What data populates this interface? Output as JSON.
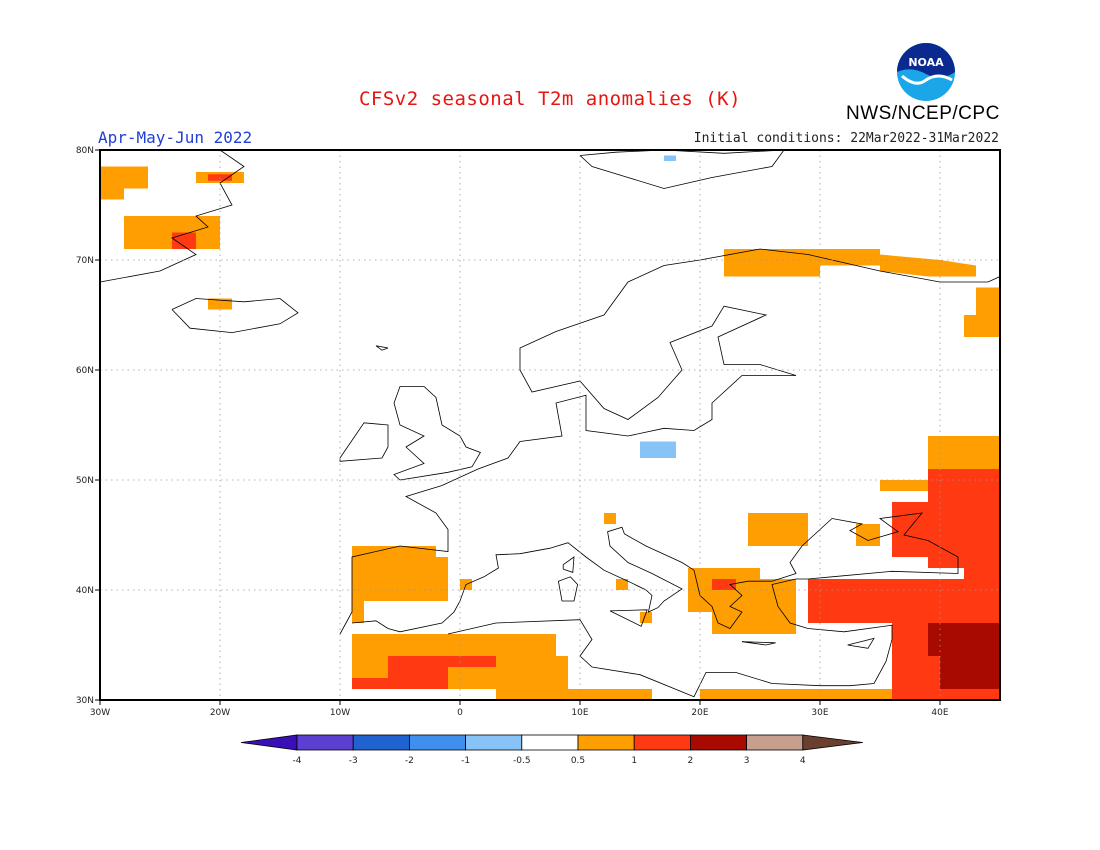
{
  "title": "CFSv2 seasonal T2m anomalies (K)",
  "period": "Apr-May-Jun 2022",
  "initial_conditions": "Initial conditions: 22Mar2022-31Mar2022",
  "agency": "NWS/NCEP/CPC",
  "logo_text": "NOAA",
  "map": {
    "lon_range": [
      -30,
      45
    ],
    "lat_range": [
      30,
      80
    ],
    "lon_ticks": [
      "30W",
      "20W",
      "10W",
      "0",
      "10E",
      "20E",
      "30E",
      "40E"
    ],
    "lat_ticks": [
      "30N",
      "40N",
      "50N",
      "60N",
      "70N",
      "80N"
    ]
  },
  "colorbar": {
    "labels": [
      "-4",
      "-3",
      "-2",
      "-1",
      "-0.5",
      "0.5",
      "1",
      "2",
      "3",
      "4"
    ],
    "colors": [
      "#3a0fb5",
      "#5a3fd0",
      "#1f62d0",
      "#3f90ee",
      "#87c3f7",
      "#ffffff",
      "#ff9e00",
      "#ff3a12",
      "#a80a00",
      "#c89f8f",
      "#6a3f30"
    ]
  },
  "anomaly_regions": {
    "orange": "#ff9e00",
    "red": "#ff3a12",
    "darkred": "#a80a00",
    "lightblue": "#87c3f7"
  }
}
